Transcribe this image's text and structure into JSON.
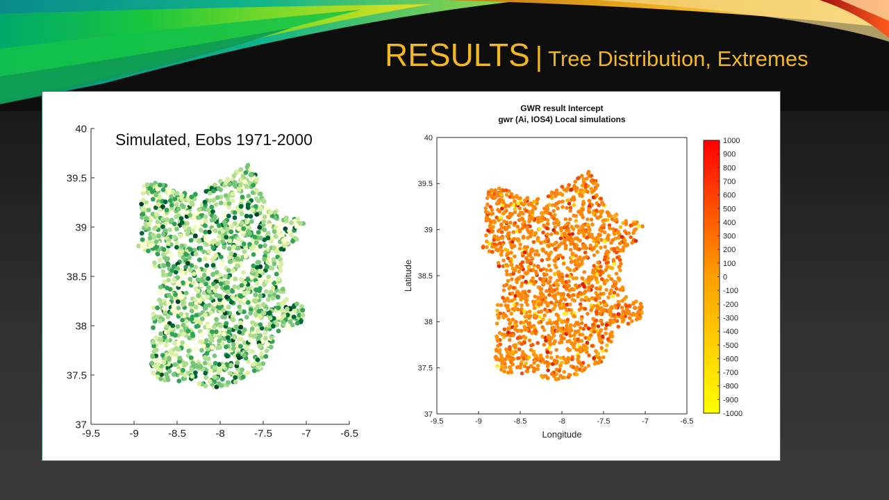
{
  "slide": {
    "title_main": "RESULTS",
    "title_sep": "|",
    "title_sub": "Tree Distribution, Extremes",
    "title_color": "#f2b824"
  },
  "chart_data": [
    {
      "type": "scatter",
      "title": "",
      "annotation": "Simulated, Eobs 1971-2000",
      "xlabel": "",
      "ylabel": "",
      "xlim": [
        -9.5,
        -6.5
      ],
      "ylim": [
        37,
        40
      ],
      "xticks": [
        "-9.5",
        "-9",
        "-8.5",
        "-8",
        "-7.5",
        "-7",
        "-6.5"
      ],
      "yticks": [
        "37",
        "37.5",
        "38",
        "38.5",
        "39",
        "39.5",
        "40"
      ],
      "colormap": [
        "#ffffcc",
        "#d9f0a3",
        "#addd8e",
        "#78c679",
        "#31a354",
        "#006837",
        "#004529"
      ],
      "grid": false
    },
    {
      "type": "scatter",
      "title": "GWR result Intercept",
      "subtitle": "gwr (Ai, IOS4) Local simulations",
      "xlabel": "Longitude",
      "ylabel": "Latitude",
      "xlim": [
        -9.5,
        -6.5
      ],
      "ylim": [
        37,
        40
      ],
      "xticks": [
        "-9.5",
        "-9",
        "-8.5",
        "-8",
        "-7.5",
        "-7",
        "-6.5"
      ],
      "yticks": [
        "37",
        "37.5",
        "38",
        "38.5",
        "39",
        "39.5",
        "40"
      ],
      "colorbar": {
        "range": [
          -1000,
          1000
        ],
        "ticks": [
          "1000",
          "900",
          "800",
          "700",
          "600",
          "500",
          "400",
          "300",
          "200",
          "100",
          "0",
          "-100",
          "-200",
          "-300",
          "-400",
          "-500",
          "-600",
          "-700",
          "-800",
          "-900",
          "-1000"
        ],
        "colors": [
          "#ffff00",
          "#ffa000",
          "#ff0000"
        ]
      },
      "grid": false
    }
  ]
}
